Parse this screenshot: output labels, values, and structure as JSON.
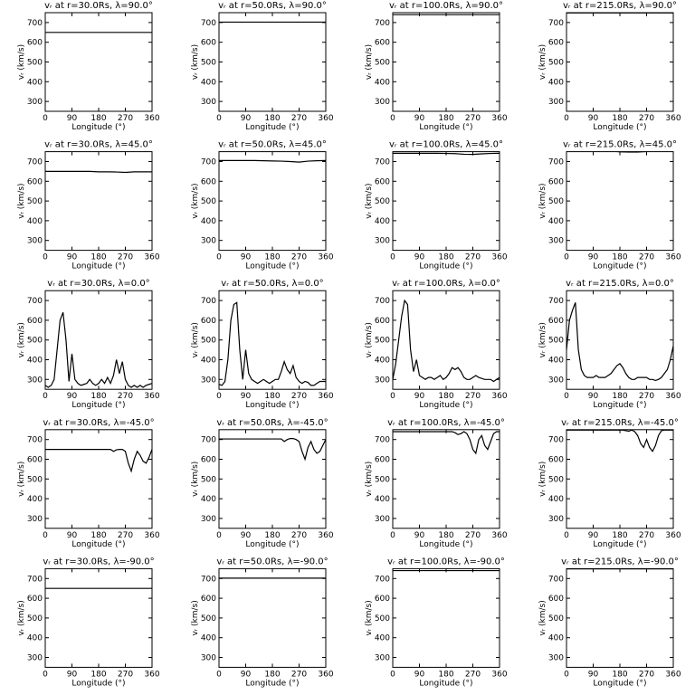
{
  "chart_data": [
    {
      "type": "line",
      "title": "vᵣ at r=30.0Rs, λ=90.0°",
      "xlabel": "Longitude (°)",
      "ylabel": "vᵣ (km/s)",
      "color": "#000000",
      "xlim": [
        0,
        360
      ],
      "ylim": [
        250,
        750
      ],
      "xticks": [
        0,
        90,
        180,
        270,
        360
      ],
      "yticks": [
        300,
        400,
        500,
        600,
        700
      ],
      "x": [
        0,
        360
      ],
      "values": [
        650,
        650
      ]
    },
    {
      "type": "line",
      "title": "vᵣ at r=50.0Rs, λ=90.0°",
      "xlabel": "Longitude (°)",
      "ylabel": "vᵣ (km/s)",
      "color": "#000000",
      "xlim": [
        0,
        360
      ],
      "ylim": [
        250,
        750
      ],
      "xticks": [
        0,
        90,
        180,
        270,
        360
      ],
      "yticks": [
        300,
        400,
        500,
        600,
        700
      ],
      "x": [
        0,
        360
      ],
      "values": [
        702,
        702
      ]
    },
    {
      "type": "line",
      "title": "vᵣ at r=100.0Rs, λ=90.0°",
      "xlabel": "Longitude (°)",
      "ylabel": "vᵣ (km/s)",
      "color": "#000000",
      "xlim": [
        0,
        360
      ],
      "ylim": [
        250,
        750
      ],
      "xticks": [
        0,
        90,
        180,
        270,
        360
      ],
      "yticks": [
        300,
        400,
        500,
        600,
        700
      ],
      "x": [
        0,
        360
      ],
      "values": [
        740,
        740
      ]
    },
    {
      "type": "line",
      "title": "vᵣ at r=215.0Rs, λ=90.0°",
      "xlabel": "Longitude (°)",
      "ylabel": "vᵣ (km/s)",
      "color": "#000000",
      "xlim": [
        0,
        360
      ],
      "ylim": [
        250,
        750
      ],
      "xticks": [
        0,
        90,
        180,
        270,
        360
      ],
      "yticks": [
        300,
        400,
        500,
        600,
        700
      ],
      "x": [
        0,
        360
      ],
      "values": [
        749,
        749
      ]
    },
    {
      "type": "line",
      "title": "vᵣ at r=30.0Rs, λ=45.0°",
      "xlabel": "Longitude (°)",
      "ylabel": "vᵣ (km/s)",
      "color": "#000000",
      "xlim": [
        0,
        360
      ],
      "ylim": [
        250,
        750
      ],
      "xticks": [
        0,
        90,
        180,
        270,
        360
      ],
      "yticks": [
        300,
        400,
        500,
        600,
        700
      ],
      "x": [
        0,
        30,
        60,
        90,
        120,
        150,
        180,
        210,
        240,
        270,
        300,
        330,
        360
      ],
      "values": [
        650,
        650,
        650,
        650,
        650,
        650,
        648,
        648,
        647,
        645,
        648,
        648,
        648
      ]
    },
    {
      "type": "line",
      "title": "vᵣ at r=50.0Rs, λ=45.0°",
      "xlabel": "Longitude (°)",
      "ylabel": "vᵣ (km/s)",
      "color": "#000000",
      "xlim": [
        0,
        360
      ],
      "ylim": [
        250,
        750
      ],
      "xticks": [
        0,
        90,
        180,
        270,
        360
      ],
      "yticks": [
        300,
        400,
        500,
        600,
        700
      ],
      "x": [
        0,
        30,
        60,
        90,
        120,
        150,
        180,
        210,
        240,
        270,
        300,
        330,
        360
      ],
      "values": [
        705,
        705,
        705,
        705,
        705,
        704,
        703,
        702,
        700,
        697,
        702,
        704,
        705
      ]
    },
    {
      "type": "line",
      "title": "vᵣ at r=100.0Rs, λ=45.0°",
      "xlabel": "Longitude (°)",
      "ylabel": "vᵣ (km/s)",
      "color": "#000000",
      "xlim": [
        0,
        360
      ],
      "ylim": [
        250,
        750
      ],
      "xticks": [
        0,
        90,
        180,
        270,
        360
      ],
      "yticks": [
        300,
        400,
        500,
        600,
        700
      ],
      "x": [
        0,
        30,
        60,
        90,
        120,
        150,
        180,
        210,
        240,
        270,
        300,
        330,
        360
      ],
      "values": [
        742,
        742,
        742,
        742,
        742,
        742,
        741,
        740,
        737,
        736,
        739,
        741,
        742
      ]
    },
    {
      "type": "line",
      "title": "vᵣ at r=215.0Rs, λ=45.0°",
      "xlabel": "Longitude (°)",
      "ylabel": "vᵣ (km/s)",
      "color": "#000000",
      "xlim": [
        0,
        360
      ],
      "ylim": [
        250,
        750
      ],
      "xticks": [
        0,
        90,
        180,
        270,
        360
      ],
      "yticks": [
        300,
        400,
        500,
        600,
        700
      ],
      "x": [
        0,
        30,
        60,
        90,
        120,
        150,
        180,
        210,
        240,
        270,
        300,
        330,
        360
      ],
      "values": [
        756,
        756,
        756,
        755,
        755,
        753,
        749,
        748,
        748,
        751,
        755,
        756,
        756
      ]
    },
    {
      "type": "line",
      "title": "vᵣ at r=30.0Rs, λ=0.0°",
      "xlabel": "Longitude (°)",
      "ylabel": "vᵣ (km/s)",
      "color": "#000000",
      "xlim": [
        0,
        360
      ],
      "ylim": [
        250,
        750
      ],
      "xticks": [
        0,
        90,
        180,
        270,
        360
      ],
      "yticks": [
        300,
        400,
        500,
        600,
        700
      ],
      "x": [
        0,
        10,
        20,
        30,
        40,
        50,
        60,
        70,
        80,
        90,
        100,
        110,
        120,
        130,
        140,
        150,
        160,
        170,
        180,
        190,
        200,
        210,
        220,
        230,
        240,
        250,
        260,
        270,
        280,
        290,
        300,
        310,
        320,
        330,
        340,
        350,
        360
      ],
      "values": [
        270,
        260,
        270,
        300,
        450,
        600,
        640,
        500,
        290,
        430,
        300,
        280,
        270,
        275,
        280,
        300,
        280,
        270,
        280,
        300,
        280,
        310,
        280,
        320,
        400,
        330,
        390,
        300,
        270,
        260,
        270,
        260,
        270,
        260,
        270,
        275,
        280
      ]
    },
    {
      "type": "line",
      "title": "vᵣ at r=50.0Rs, λ=0.0°",
      "xlabel": "Longitude (°)",
      "ylabel": "vᵣ (km/s)",
      "color": "#000000",
      "xlim": [
        0,
        360
      ],
      "ylim": [
        250,
        750
      ],
      "xticks": [
        0,
        90,
        180,
        270,
        360
      ],
      "yticks": [
        300,
        400,
        500,
        600,
        700
      ],
      "x": [
        0,
        10,
        20,
        30,
        40,
        50,
        60,
        70,
        80,
        90,
        100,
        110,
        120,
        130,
        140,
        150,
        160,
        170,
        180,
        190,
        200,
        210,
        220,
        230,
        240,
        250,
        260,
        270,
        280,
        290,
        300,
        310,
        320,
        330,
        340,
        350,
        360
      ],
      "values": [
        275,
        270,
        290,
        400,
        600,
        680,
        690,
        450,
        300,
        450,
        330,
        300,
        290,
        280,
        290,
        300,
        290,
        280,
        290,
        300,
        300,
        340,
        390,
        350,
        330,
        370,
        310,
        290,
        280,
        290,
        285,
        270,
        270,
        280,
        290,
        290,
        290
      ]
    },
    {
      "type": "line",
      "title": "vᵣ at r=100.0Rs, λ=0.0°",
      "xlabel": "Longitude (°)",
      "ylabel": "vᵣ (km/s)",
      "color": "#000000",
      "xlim": [
        0,
        360
      ],
      "ylim": [
        250,
        750
      ],
      "xticks": [
        0,
        90,
        180,
        270,
        360
      ],
      "yticks": [
        300,
        400,
        500,
        600,
        700
      ],
      "x": [
        0,
        10,
        20,
        30,
        40,
        50,
        60,
        70,
        80,
        90,
        100,
        110,
        120,
        130,
        140,
        150,
        160,
        170,
        180,
        190,
        200,
        210,
        220,
        230,
        240,
        250,
        260,
        270,
        280,
        290,
        300,
        310,
        320,
        330,
        340,
        350,
        360
      ],
      "values": [
        300,
        380,
        500,
        620,
        700,
        680,
        450,
        340,
        400,
        320,
        310,
        300,
        310,
        310,
        300,
        310,
        320,
        300,
        310,
        330,
        360,
        350,
        360,
        340,
        310,
        300,
        300,
        310,
        320,
        310,
        305,
        300,
        300,
        300,
        290,
        300,
        310
      ]
    },
    {
      "type": "line",
      "title": "vᵣ at r=215.0Rs, λ=0.0°",
      "xlabel": "Longitude (°)",
      "ylabel": "vᵣ (km/s)",
      "color": "#000000",
      "xlim": [
        0,
        360
      ],
      "ylim": [
        250,
        750
      ],
      "xticks": [
        0,
        90,
        180,
        270,
        360
      ],
      "yticks": [
        300,
        400,
        500,
        600,
        700
      ],
      "x": [
        0,
        10,
        20,
        30,
        40,
        50,
        60,
        70,
        80,
        90,
        100,
        110,
        120,
        130,
        140,
        150,
        160,
        170,
        180,
        190,
        200,
        210,
        220,
        230,
        240,
        250,
        260,
        270,
        280,
        290,
        300,
        310,
        320,
        330,
        340,
        350,
        360
      ],
      "values": [
        450,
        600,
        650,
        690,
        450,
        350,
        320,
        310,
        310,
        310,
        320,
        310,
        310,
        310,
        320,
        330,
        350,
        370,
        380,
        360,
        330,
        310,
        300,
        300,
        310,
        310,
        310,
        310,
        300,
        300,
        295,
        300,
        310,
        330,
        350,
        400,
        470
      ]
    },
    {
      "type": "line",
      "title": "vᵣ at r=30.0Rs, λ=-45.0°",
      "xlabel": "Longitude (°)",
      "ylabel": "vᵣ (km/s)",
      "color": "#000000",
      "xlim": [
        0,
        360
      ],
      "ylim": [
        250,
        750
      ],
      "xticks": [
        0,
        90,
        180,
        270,
        360
      ],
      "yticks": [
        300,
        400,
        500,
        600,
        700
      ],
      "x": [
        0,
        10,
        20,
        30,
        40,
        50,
        60,
        70,
        80,
        90,
        100,
        110,
        120,
        130,
        140,
        150,
        160,
        170,
        180,
        190,
        200,
        210,
        220,
        230,
        240,
        250,
        260,
        270,
        280,
        290,
        300,
        310,
        320,
        330,
        340,
        350,
        360
      ],
      "values": [
        650,
        650,
        650,
        650,
        650,
        650,
        650,
        650,
        650,
        650,
        650,
        650,
        650,
        650,
        650,
        650,
        650,
        650,
        650,
        650,
        650,
        650,
        650,
        640,
        648,
        650,
        650,
        640,
        580,
        540,
        600,
        640,
        620,
        590,
        580,
        610,
        650
      ]
    },
    {
      "type": "line",
      "title": "vᵣ at r=50.0Rs, λ=-45.0°",
      "xlabel": "Longitude (°)",
      "ylabel": "vᵣ (km/s)",
      "color": "#000000",
      "xlim": [
        0,
        360
      ],
      "ylim": [
        250,
        750
      ],
      "xticks": [
        0,
        90,
        180,
        270,
        360
      ],
      "yticks": [
        300,
        400,
        500,
        600,
        700
      ],
      "x": [
        0,
        10,
        20,
        30,
        40,
        50,
        60,
        70,
        80,
        90,
        100,
        110,
        120,
        130,
        140,
        150,
        160,
        170,
        180,
        190,
        200,
        210,
        220,
        230,
        240,
        250,
        260,
        270,
        280,
        290,
        300,
        310,
        320,
        330,
        340,
        350,
        360
      ],
      "values": [
        703,
        703,
        703,
        703,
        703,
        703,
        703,
        703,
        703,
        703,
        703,
        703,
        703,
        703,
        703,
        703,
        703,
        703,
        703,
        703,
        703,
        703,
        690,
        700,
        705,
        705,
        700,
        690,
        640,
        600,
        660,
        690,
        650,
        630,
        640,
        670,
        700
      ]
    },
    {
      "type": "line",
      "title": "vᵣ at r=100.0Rs, λ=-45.0°",
      "xlabel": "Longitude (°)",
      "ylabel": "vᵣ (km/s)",
      "color": "#000000",
      "xlim": [
        0,
        360
      ],
      "ylim": [
        250,
        750
      ],
      "xticks": [
        0,
        90,
        180,
        270,
        360
      ],
      "yticks": [
        300,
        400,
        500,
        600,
        700
      ],
      "x": [
        0,
        10,
        20,
        30,
        40,
        50,
        60,
        70,
        80,
        90,
        100,
        110,
        120,
        130,
        140,
        150,
        160,
        170,
        180,
        190,
        200,
        210,
        220,
        230,
        240,
        250,
        260,
        270,
        280,
        290,
        300,
        310,
        320,
        330,
        340,
        350,
        360
      ],
      "values": [
        740,
        740,
        740,
        740,
        740,
        740,
        740,
        740,
        740,
        740,
        740,
        740,
        740,
        740,
        740,
        740,
        740,
        740,
        740,
        740,
        740,
        735,
        725,
        730,
        740,
        730,
        700,
        650,
        630,
        700,
        720,
        670,
        650,
        690,
        730,
        740,
        740
      ]
    },
    {
      "type": "line",
      "title": "vᵣ at r=215.0Rs, λ=-45.0°",
      "xlabel": "Longitude (°)",
      "ylabel": "vᵣ (km/s)",
      "color": "#000000",
      "xlim": [
        0,
        360
      ],
      "ylim": [
        250,
        750
      ],
      "xticks": [
        0,
        90,
        180,
        270,
        360
      ],
      "yticks": [
        300,
        400,
        500,
        600,
        700
      ],
      "x": [
        0,
        10,
        20,
        30,
        40,
        50,
        60,
        70,
        80,
        90,
        100,
        110,
        120,
        130,
        140,
        150,
        160,
        170,
        180,
        190,
        200,
        210,
        220,
        230,
        240,
        250,
        260,
        270,
        280,
        290,
        300,
        310,
        320,
        330,
        340,
        350,
        360
      ],
      "values": [
        748,
        748,
        748,
        748,
        748,
        748,
        748,
        748,
        748,
        748,
        748,
        748,
        748,
        748,
        748,
        748,
        748,
        748,
        748,
        748,
        745,
        742,
        748,
        740,
        720,
        680,
        660,
        700,
        660,
        640,
        670,
        720,
        745,
        748,
        748,
        748,
        748
      ]
    },
    {
      "type": "line",
      "title": "vᵣ at r=30.0Rs, λ=-90.0°",
      "xlabel": "Longitude (°)",
      "ylabel": "vᵣ (km/s)",
      "color": "#000000",
      "xlim": [
        0,
        360
      ],
      "ylim": [
        250,
        750
      ],
      "xticks": [
        0,
        90,
        180,
        270,
        360
      ],
      "yticks": [
        300,
        400,
        500,
        600,
        700
      ],
      "x": [
        0,
        360
      ],
      "values": [
        650,
        650
      ]
    },
    {
      "type": "line",
      "title": "vᵣ at r=50.0Rs, λ=-90.0°",
      "xlabel": "Longitude (°)",
      "ylabel": "vᵣ (km/s)",
      "color": "#000000",
      "xlim": [
        0,
        360
      ],
      "ylim": [
        250,
        750
      ],
      "xticks": [
        0,
        90,
        180,
        270,
        360
      ],
      "yticks": [
        300,
        400,
        500,
        600,
        700
      ],
      "x": [
        0,
        360
      ],
      "values": [
        702,
        702
      ]
    },
    {
      "type": "line",
      "title": "vᵣ at r=100.0Rs, λ=-90.0°",
      "xlabel": "Longitude (°)",
      "ylabel": "vᵣ (km/s)",
      "color": "#000000",
      "xlim": [
        0,
        360
      ],
      "ylim": [
        250,
        750
      ],
      "xticks": [
        0,
        90,
        180,
        270,
        360
      ],
      "yticks": [
        300,
        400,
        500,
        600,
        700
      ],
      "x": [
        0,
        360
      ],
      "values": [
        740,
        740
      ]
    },
    {
      "type": "line",
      "title": "vᵣ at r=215.0Rs, λ=-90.0°",
      "xlabel": "Longitude (°)",
      "ylabel": "vᵣ (km/s)",
      "color": "#000000",
      "xlim": [
        0,
        360
      ],
      "ylim": [
        250,
        750
      ],
      "xticks": [
        0,
        90,
        180,
        270,
        360
      ],
      "yticks": [
        300,
        400,
        500,
        600,
        700
      ],
      "x": [
        0,
        360
      ],
      "values": [
        749,
        749
      ]
    }
  ]
}
